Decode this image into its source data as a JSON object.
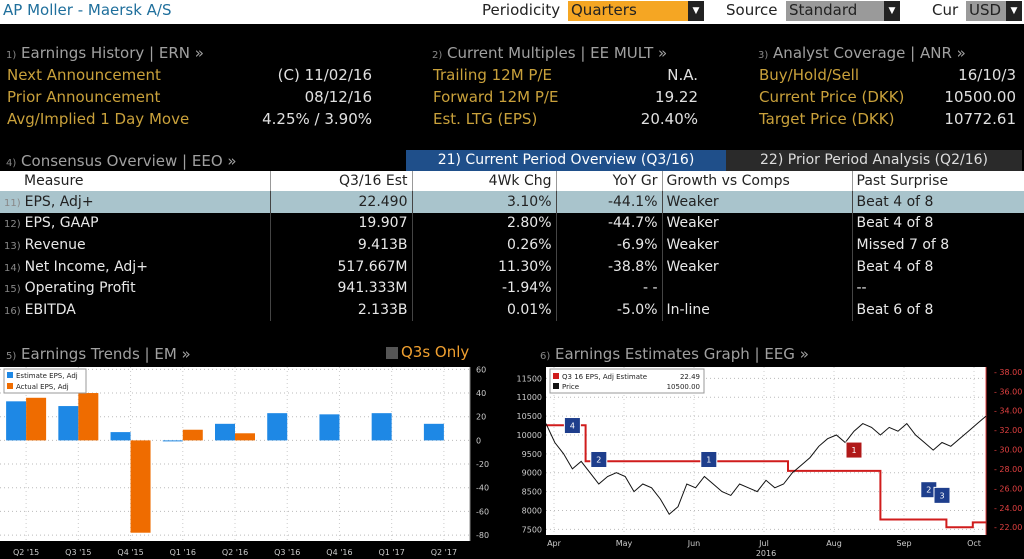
{
  "header": {
    "title": "AP Moller - Maersk A/S",
    "periodicity_label": "Periodicity",
    "periodicity_value": "Quarters",
    "source_label": "Source",
    "source_value": "Standard",
    "cur_label": "Cur",
    "cur_value": "USD"
  },
  "earnings_history": {
    "num": "1)",
    "title": "Earnings History | ERN »",
    "rows": [
      {
        "label": "Next Announcement",
        "value": "(C)  11/02/16"
      },
      {
        "label": "Prior Announcement",
        "value": "08/12/16"
      },
      {
        "label": "Avg/Implied 1 Day Move",
        "value": "4.25% / 3.90%"
      }
    ]
  },
  "multiples": {
    "num": "2)",
    "title": "Current Multiples | EE MULT »",
    "rows": [
      {
        "label": "Trailing 12M P/E",
        "value": "N.A."
      },
      {
        "label": "Forward 12M P/E",
        "value": "19.22"
      },
      {
        "label": "Est. LTG (EPS)",
        "value": "20.40%"
      }
    ]
  },
  "analyst": {
    "num": "3)",
    "title": "Analyst Coverage | ANR »",
    "rows": [
      {
        "label": "Buy/Hold/Sell",
        "value": "16/10/3"
      },
      {
        "label": "Current Price (DKK)",
        "value": "10500.00"
      },
      {
        "label": "Target Price (DKK)",
        "value": "10772.61"
      }
    ]
  },
  "consensus": {
    "num": "4)",
    "title": "Consensus Overview | EEO »",
    "tab_current": "21) Current Period Overview (Q3/16)",
    "tab_prior": "22) Prior Period Analysis (Q2/16)",
    "headers": [
      "Measure",
      "Q3/16 Est",
      "4Wk Chg",
      "YoY Gr",
      "Growth vs Comps",
      "Past Surprise"
    ],
    "rows": [
      {
        "n": "11)",
        "measure": "EPS, Adj+",
        "est": "22.490",
        "chg": "3.10%",
        "yoy": "-44.1%",
        "comps": "Weaker",
        "surprise": "Beat 4 of 8"
      },
      {
        "n": "12)",
        "measure": "EPS, GAAP",
        "est": "19.907",
        "chg": "2.80%",
        "yoy": "-44.7%",
        "comps": "Weaker",
        "surprise": "Beat 4 of 8"
      },
      {
        "n": "13)",
        "measure": "Revenue",
        "est": "9.413B",
        "chg": "0.26%",
        "yoy": "-6.9%",
        "comps": "Weaker",
        "surprise": "Missed 7 of 8"
      },
      {
        "n": "14)",
        "measure": "Net Income, Adj+",
        "est": "517.667M",
        "chg": "11.30%",
        "yoy": "-38.8%",
        "comps": "Weaker",
        "surprise": "Beat 4 of 8"
      },
      {
        "n": "15)",
        "measure": "Operating Profit",
        "est": "941.333M",
        "chg": "-1.94%",
        "yoy": "- -",
        "comps": "",
        "surprise": "--"
      },
      {
        "n": "16)",
        "measure": "EBITDA",
        "est": "2.133B",
        "chg": "0.01%",
        "yoy": "-5.0%",
        "comps": "In-line",
        "surprise": "Beat 6 of 8"
      }
    ]
  },
  "trends": {
    "num": "5)",
    "title": "Earnings Trends | EM »",
    "toggle_label": "Q3s Only",
    "legend_est": "Estimate EPS, Adj",
    "legend_act": "Actual EPS, Adj"
  },
  "estimates_graph": {
    "num": "6)",
    "title": "Earnings Estimates Graph | EEG »",
    "legend_est": "Q3 16 EPS, Adj Estimate",
    "legend_est_val": "22.49",
    "legend_price": "Price",
    "legend_price_val": "10500.00",
    "year_label": "2016"
  },
  "chart_data": [
    {
      "type": "bar",
      "categories": [
        "Q2 '15",
        "Q3 '15",
        "Q4 '15",
        "Q1 '16",
        "Q2 '16",
        "Q3 '16",
        "Q4 '16",
        "Q1 '17",
        "Q2 '17"
      ],
      "series": [
        {
          "name": "Estimate EPS, Adj",
          "values": [
            33,
            29,
            7,
            0,
            14,
            23,
            22,
            23,
            14
          ]
        },
        {
          "name": "Actual EPS, Adj",
          "values": [
            36,
            40,
            -78,
            9,
            6,
            null,
            null,
            null,
            null
          ]
        }
      ],
      "yticks": [
        60,
        40,
        20,
        0,
        -20,
        -40,
        -60,
        -80
      ],
      "ylim": [
        -85,
        62
      ],
      "colors": {
        "estimate": "#1e88e5",
        "actual": "#ef6c00"
      }
    },
    {
      "type": "line",
      "x_labels": [
        "Apr",
        "May",
        "Jun",
        "Jul",
        "Aug",
        "Sep",
        "Oct"
      ],
      "left_yticks": [
        7500,
        8000,
        8500,
        9000,
        9500,
        10000,
        10500,
        11000,
        11500
      ],
      "right_yticks": [
        "22.00",
        "24.00",
        "26.00",
        "28.00",
        "30.00",
        "32.00",
        "34.00",
        "36.00",
        "38.00"
      ],
      "left_ylim": [
        7350,
        11800
      ],
      "right_ylim": [
        21.2,
        38.5
      ],
      "series": [
        {
          "name": "Q3 16 EPS, Adj Estimate",
          "axis": "right",
          "color": "#d01c1c",
          "points": [
            [
              0,
              32.5
            ],
            [
              0.09,
              32.5
            ],
            [
              0.09,
              28.8
            ],
            [
              0.55,
              28.8
            ],
            [
              0.55,
              27.8
            ],
            [
              0.76,
              27.8
            ],
            [
              0.76,
              22.8
            ],
            [
              0.91,
              22.8
            ],
            [
              0.91,
              22.0
            ],
            [
              0.97,
              22.0
            ],
            [
              0.97,
              22.5
            ],
            [
              1.0,
              22.5
            ]
          ]
        },
        {
          "name": "Price",
          "axis": "left",
          "color": "#111",
          "points": [
            [
              0,
              10300
            ],
            [
              0.02,
              9800
            ],
            [
              0.04,
              9500
            ],
            [
              0.06,
              9100
            ],
            [
              0.08,
              9300
            ],
            [
              0.1,
              9000
            ],
            [
              0.12,
              8700
            ],
            [
              0.14,
              8900
            ],
            [
              0.16,
              9000
            ],
            [
              0.18,
              8900
            ],
            [
              0.2,
              8500
            ],
            [
              0.22,
              8700
            ],
            [
              0.24,
              8600
            ],
            [
              0.26,
              8300
            ],
            [
              0.28,
              7900
            ],
            [
              0.3,
              8100
            ],
            [
              0.32,
              8700
            ],
            [
              0.34,
              8600
            ],
            [
              0.36,
              8900
            ],
            [
              0.38,
              8700
            ],
            [
              0.4,
              8500
            ],
            [
              0.42,
              8400
            ],
            [
              0.44,
              8700
            ],
            [
              0.46,
              8600
            ],
            [
              0.48,
              8500
            ],
            [
              0.5,
              8800
            ],
            [
              0.52,
              8600
            ],
            [
              0.54,
              8700
            ],
            [
              0.56,
              9000
            ],
            [
              0.58,
              9200
            ],
            [
              0.6,
              9400
            ],
            [
              0.62,
              9700
            ],
            [
              0.64,
              9900
            ],
            [
              0.66,
              10000
            ],
            [
              0.68,
              9800
            ],
            [
              0.7,
              10100
            ],
            [
              0.72,
              10300
            ],
            [
              0.74,
              10200
            ],
            [
              0.76,
              10000
            ],
            [
              0.78,
              10200
            ],
            [
              0.8,
              10100
            ],
            [
              0.82,
              10300
            ],
            [
              0.84,
              10000
            ],
            [
              0.86,
              9800
            ],
            [
              0.88,
              9600
            ],
            [
              0.9,
              9800
            ],
            [
              0.92,
              9700
            ],
            [
              0.94,
              9900
            ],
            [
              0.96,
              10100
            ],
            [
              0.98,
              10300
            ],
            [
              1.0,
              10500
            ]
          ]
        }
      ],
      "markers": [
        {
          "label": "4",
          "x": 0.06,
          "y": 10250,
          "color": "#1e3e8c"
        },
        {
          "label": "2",
          "x": 0.12,
          "y": 9350,
          "color": "#1e3e8c"
        },
        {
          "label": "1",
          "x": 0.37,
          "y": 9350,
          "color": "#1e3e8c"
        },
        {
          "label": "1",
          "x": 0.7,
          "y": 9600,
          "color": "#b01818"
        },
        {
          "label": "2",
          "x": 0.87,
          "y": 8550,
          "color": "#1e3e8c"
        },
        {
          "label": "3",
          "x": 0.9,
          "y": 8400,
          "color": "#1e3e8c"
        }
      ]
    }
  ]
}
